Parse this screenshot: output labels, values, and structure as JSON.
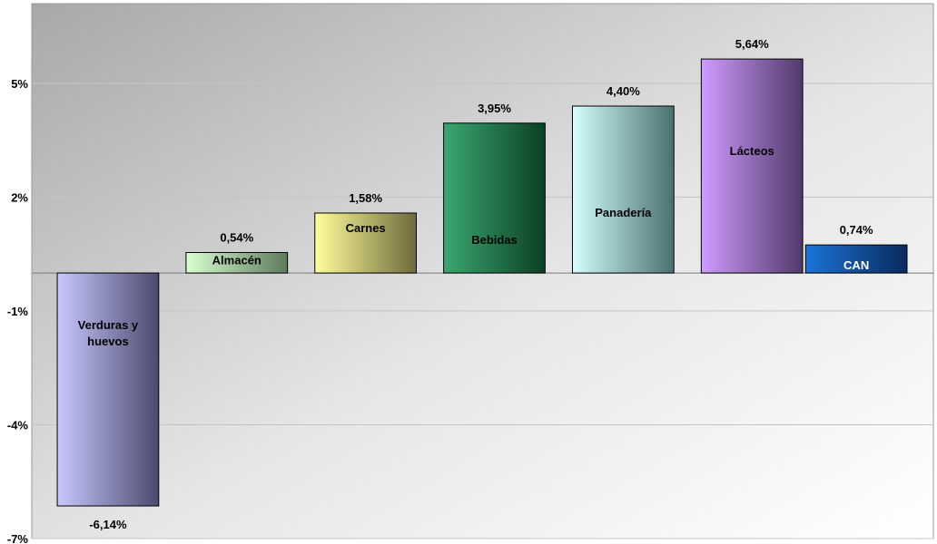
{
  "chart_data": {
    "type": "bar",
    "categories": [
      "Verduras y huevos",
      "Almacén",
      "Carnes",
      "Bebidas",
      "Panadería",
      "Lácteos",
      "CAN"
    ],
    "values": [
      -6.14,
      0.54,
      1.58,
      3.95,
      4.4,
      5.64,
      0.74
    ],
    "value_labels": [
      "-6,14%",
      "0,54%",
      "1,58%",
      "3,95%",
      "4,40%",
      "5,64%",
      "0,74%"
    ],
    "yticks": [
      5,
      2,
      -1,
      -4,
      -7
    ],
    "ytick_labels": [
      "5%",
      "2%",
      "-1%",
      "-4%",
      "-7%"
    ],
    "ylim": [
      -7,
      7.1
    ],
    "grid": true,
    "legend": "none",
    "colors": [
      [
        "#c8c8ff",
        "#4a4a6e"
      ],
      [
        "#d8ffd0",
        "#5e7a5e"
      ],
      [
        "#ffff9a",
        "#6e6a3c"
      ],
      [
        "#3aa870",
        "#0c4024"
      ],
      [
        "#d4ffff",
        "#4a7070"
      ],
      [
        "#cf9cff",
        "#503a6a"
      ],
      [
        "#1a74d8",
        "#0a2a5c"
      ]
    ]
  }
}
